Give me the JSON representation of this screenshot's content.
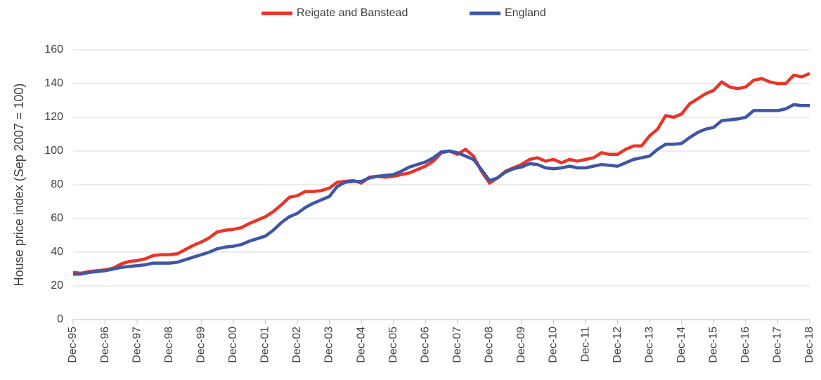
{
  "chart_data": {
    "type": "line",
    "ylabel": "House price index (Sep 2007 = 100)",
    "categories": [
      "Dec-95",
      null,
      null,
      null,
      "Dec-96",
      null,
      null,
      null,
      "Dec-97",
      null,
      null,
      null,
      "Dec-98",
      null,
      null,
      null,
      "Dec-99",
      null,
      null,
      null,
      "Dec-00",
      null,
      null,
      null,
      "Dec-01",
      null,
      null,
      null,
      "Dec-02",
      null,
      null,
      null,
      "Dec-03",
      null,
      null,
      null,
      "Dec-04",
      null,
      null,
      null,
      "Dec-05",
      null,
      null,
      null,
      "Dec-06",
      null,
      null,
      null,
      "Dec-07",
      null,
      null,
      null,
      "Dec-08",
      null,
      null,
      null,
      "Dec-09",
      null,
      null,
      null,
      "Dec-10",
      null,
      null,
      null,
      "Dec-11",
      null,
      null,
      null,
      "Dec-12",
      null,
      null,
      null,
      "Dec-13",
      null,
      null,
      null,
      "Dec-14",
      null,
      null,
      null,
      "Dec-15",
      null,
      null,
      null,
      "Dec-16",
      null,
      null,
      null,
      "Dec-17",
      null,
      null,
      null,
      "Dec-18"
    ],
    "series": [
      {
        "name": "Reigate and Banstead",
        "color": "#e8352a",
        "values": [
          28,
          27.5,
          28.5,
          29,
          29.5,
          30.5,
          33,
          34.5,
          35,
          36,
          38,
          38.5,
          38.5,
          39,
          41.5,
          44,
          46,
          48.5,
          52,
          53,
          53.5,
          54.5,
          57,
          59,
          61,
          64,
          68,
          72.5,
          73.5,
          76,
          76,
          76.5,
          78,
          81.5,
          82,
          82.5,
          81,
          84.5,
          85,
          84.5,
          85,
          86,
          87,
          89,
          91,
          94,
          99,
          100,
          98,
          101,
          97,
          88,
          81,
          84,
          88,
          90,
          92,
          95,
          96,
          94,
          95,
          93,
          95,
          94,
          95,
          96,
          99,
          98,
          98,
          101,
          103,
          103,
          109,
          113,
          121,
          120,
          122,
          128,
          131,
          134,
          136,
          141,
          138,
          137,
          138,
          142,
          143,
          141,
          140,
          140,
          145,
          144,
          146
        ]
      },
      {
        "name": "England",
        "color": "#3f56a6",
        "values": [
          27,
          27,
          28,
          28.5,
          29,
          30,
          31,
          31.5,
          32,
          32.5,
          33.5,
          33.5,
          33.5,
          34,
          35.5,
          37,
          38.5,
          40,
          42,
          43,
          43.5,
          44.5,
          46.5,
          48,
          49.5,
          53,
          57.5,
          61,
          63,
          66.5,
          69,
          71,
          73,
          79,
          81.5,
          82,
          82,
          84,
          85,
          85.5,
          86,
          88,
          90.5,
          92,
          93.5,
          96,
          99.5,
          100,
          99,
          97,
          95,
          89,
          82.5,
          84,
          87.5,
          89.5,
          90.5,
          92.5,
          92,
          90,
          89.5,
          90,
          91,
          90,
          90,
          91,
          92,
          91.5,
          91,
          93,
          95,
          96,
          97,
          101,
          104,
          104,
          104.5,
          108,
          111,
          113,
          114,
          118,
          118.5,
          119,
          120,
          124,
          124,
          124,
          124,
          125,
          127.5,
          127,
          127
        ]
      }
    ],
    "ylim": [
      0,
      160
    ],
    "yticks": [
      0,
      20,
      40,
      60,
      80,
      100,
      120,
      140,
      160
    ],
    "grid": true,
    "legend": "top"
  }
}
